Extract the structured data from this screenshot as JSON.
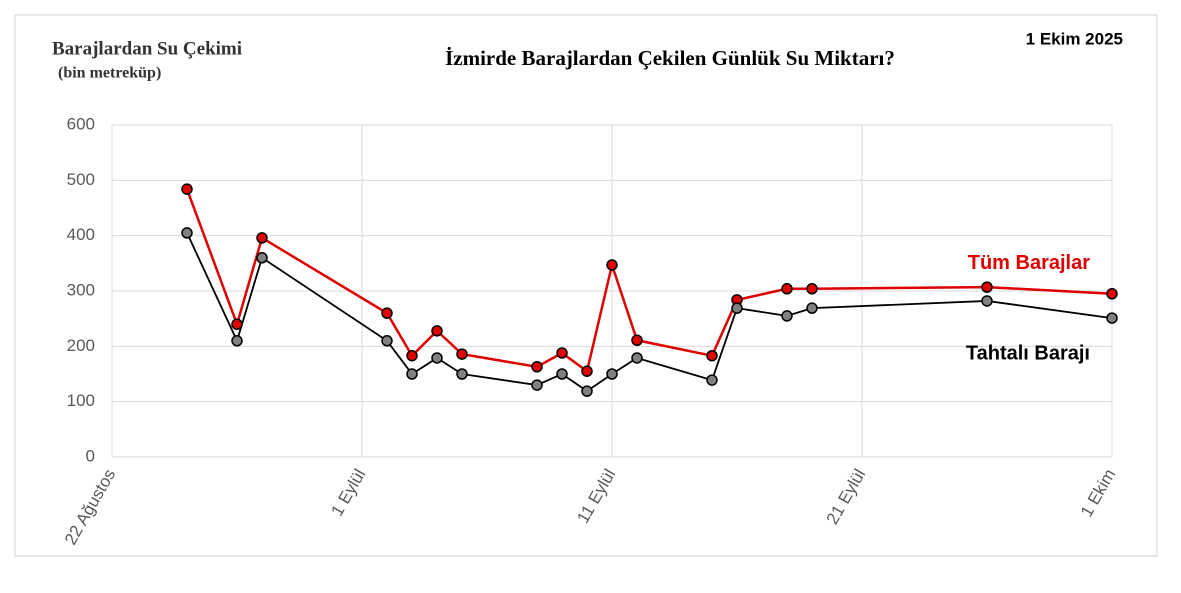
{
  "chart_data": {
    "type": "line",
    "title": "İzmirde Barajlardan Çekilen Günlük Su Miktarı?",
    "y_label": "Barajlardan Su Çekimi",
    "y_unit": "(bin metreküp)",
    "date_note": "1 Ekim 2025",
    "x": [
      "2025-08-25",
      "2025-08-27",
      "2025-08-28",
      "2025-09-02",
      "2025-09-03",
      "2025-09-04",
      "2025-09-05",
      "2025-09-08",
      "2025-09-09",
      "2025-09-10",
      "2025-09-11",
      "2025-09-12",
      "2025-09-15",
      "2025-09-16",
      "2025-09-18",
      "2025-09-19",
      "2025-09-26",
      "2025-10-01"
    ],
    "series": [
      {
        "name": "Tüm Barajlar",
        "color": "#e00000",
        "marker_fill": "#e00000",
        "values": [
          484,
          240,
          396,
          260,
          183,
          228,
          186,
          163,
          188,
          155,
          347,
          211,
          183,
          284,
          304,
          304,
          307,
          295
        ]
      },
      {
        "name": "Tahtalı Barajı",
        "color": "#000000",
        "marker_fill": "#808080",
        "values": [
          405,
          210,
          360,
          210,
          150,
          179,
          150,
          130,
          150,
          119,
          150,
          179,
          139,
          269,
          255,
          269,
          282,
          251
        ]
      }
    ],
    "xlim": [
      "2025-08-22",
      "2025-10-01"
    ],
    "xticks": [
      {
        "value": "2025-08-22",
        "label": "22 Ağustos"
      },
      {
        "value": "2025-09-01",
        "label": "1 Eylül"
      },
      {
        "value": "2025-09-11",
        "label": "11 Eylül"
      },
      {
        "value": "2025-09-21",
        "label": "21 Eylül"
      },
      {
        "value": "2025-10-01",
        "label": "1 Ekim"
      }
    ],
    "ylim": [
      0,
      600
    ],
    "yticks": [
      0,
      100,
      200,
      300,
      400,
      500,
      600
    ],
    "grid": true
  }
}
